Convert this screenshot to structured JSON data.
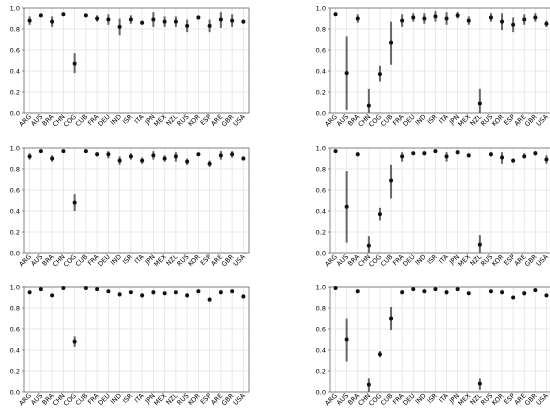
{
  "chart_data": [
    {
      "type": "scatter",
      "categories": [
        "ARG",
        "AUS",
        "BRA",
        "CHN",
        "COG",
        "CUB",
        "FRA",
        "DEU",
        "IND",
        "ISR",
        "ITA",
        "JPN",
        "MEX",
        "NZL",
        "RUS",
        "KOR",
        "ESP",
        "ARE",
        "GBR",
        "USA"
      ],
      "yticks": [
        "0.0",
        "0.2",
        "0.4",
        "0.6",
        "0.8",
        "1.0"
      ],
      "ylim": [
        0,
        1.0
      ],
      "grid": true,
      "values": [
        0.88,
        0.93,
        0.87,
        0.94,
        0.47,
        0.93,
        0.9,
        0.89,
        0.82,
        0.89,
        0.86,
        0.89,
        0.87,
        0.87,
        0.83,
        0.91,
        0.83,
        0.89,
        0.88,
        0.87
      ],
      "lower": [
        0.84,
        0.92,
        0.82,
        0.93,
        0.38,
        0.92,
        0.87,
        0.84,
        0.74,
        0.85,
        0.84,
        0.82,
        0.82,
        0.82,
        0.77,
        0.89,
        0.77,
        0.81,
        0.82,
        0.85
      ],
      "upper": [
        0.92,
        0.94,
        0.92,
        0.95,
        0.57,
        0.94,
        0.93,
        0.94,
        0.9,
        0.93,
        0.88,
        0.96,
        0.92,
        0.92,
        0.89,
        0.93,
        0.89,
        0.96,
        0.94,
        0.89
      ]
    },
    {
      "type": "scatter",
      "categories": [
        "ARG",
        "AUS",
        "BRA",
        "CHN",
        "COG",
        "CUB",
        "FRA",
        "DEU",
        "IND",
        "ISR",
        "ITA",
        "JPN",
        "MEX",
        "NZL",
        "RUS",
        "KOR",
        "ESP",
        "ARE",
        "GBR",
        "USA"
      ],
      "yticks": [
        "0.0",
        "0.2",
        "0.4",
        "0.6",
        "0.8",
        "1.0"
      ],
      "ylim": [
        0,
        1.0
      ],
      "grid": true,
      "values": [
        0.94,
        0.38,
        0.9,
        0.07,
        0.37,
        0.67,
        0.88,
        0.91,
        0.9,
        0.92,
        0.9,
        0.93,
        0.88,
        0.09,
        0.91,
        0.87,
        0.84,
        0.89,
        0.91,
        0.85
      ],
      "lower": [
        0.93,
        0.03,
        0.86,
        0.0,
        0.3,
        0.46,
        0.82,
        0.87,
        0.85,
        0.87,
        0.84,
        0.9,
        0.84,
        0.0,
        0.87,
        0.79,
        0.77,
        0.84,
        0.87,
        0.82
      ],
      "upper": [
        0.95,
        0.73,
        0.94,
        0.23,
        0.45,
        0.87,
        0.94,
        0.95,
        0.95,
        0.97,
        0.96,
        0.96,
        0.92,
        0.23,
        0.95,
        0.95,
        0.91,
        0.94,
        0.95,
        0.88
      ]
    },
    {
      "type": "scatter",
      "categories": [
        "ARG",
        "AUS",
        "BRA",
        "CHN",
        "COG",
        "CUB",
        "FRA",
        "DEU",
        "IND",
        "ISR",
        "ITA",
        "JPN",
        "MEX",
        "NZL",
        "RUS",
        "KOR",
        "ESP",
        "ARE",
        "GBR",
        "USA"
      ],
      "yticks": [
        "0.0",
        "0.2",
        "0.4",
        "0.6",
        "0.8",
        "1.0"
      ],
      "ylim": [
        0,
        1.0
      ],
      "grid": true,
      "values": [
        0.92,
        0.97,
        0.9,
        0.97,
        0.48,
        0.97,
        0.94,
        0.94,
        0.88,
        0.92,
        0.88,
        0.93,
        0.9,
        0.92,
        0.87,
        0.94,
        0.85,
        0.93,
        0.94,
        0.9
      ],
      "lower": [
        0.89,
        0.96,
        0.87,
        0.96,
        0.4,
        0.96,
        0.92,
        0.9,
        0.84,
        0.89,
        0.85,
        0.89,
        0.87,
        0.87,
        0.84,
        0.93,
        0.82,
        0.89,
        0.91,
        0.88
      ],
      "upper": [
        0.95,
        0.98,
        0.93,
        0.98,
        0.56,
        0.98,
        0.96,
        0.97,
        0.92,
        0.95,
        0.91,
        0.97,
        0.93,
        0.96,
        0.9,
        0.95,
        0.88,
        0.97,
        0.97,
        0.92
      ]
    },
    {
      "type": "scatter",
      "categories": [
        "ARG",
        "AUS",
        "BRA",
        "CHN",
        "COG",
        "CUB",
        "FRA",
        "DEU",
        "IND",
        "ISR",
        "ITA",
        "JPN",
        "MEX",
        "NZL",
        "RUS",
        "KOR",
        "ESP",
        "ARE",
        "GBR",
        "USA"
      ],
      "yticks": [
        "0.0",
        "0.2",
        "0.4",
        "0.6",
        "0.8",
        "1.0"
      ],
      "ylim": [
        0,
        1.0
      ],
      "grid": true,
      "values": [
        0.97,
        0.44,
        0.94,
        0.07,
        0.37,
        0.69,
        0.92,
        0.95,
        0.95,
        0.97,
        0.92,
        0.96,
        0.93,
        0.08,
        0.94,
        0.91,
        0.88,
        0.92,
        0.95,
        0.89
      ],
      "lower": [
        0.96,
        0.1,
        0.92,
        0.0,
        0.31,
        0.52,
        0.87,
        0.94,
        0.93,
        0.96,
        0.87,
        0.94,
        0.91,
        0.0,
        0.92,
        0.85,
        0.86,
        0.9,
        0.93,
        0.85
      ],
      "upper": [
        0.98,
        0.78,
        0.96,
        0.16,
        0.43,
        0.84,
        0.96,
        0.96,
        0.97,
        0.98,
        0.96,
        0.98,
        0.95,
        0.17,
        0.96,
        0.96,
        0.9,
        0.95,
        0.97,
        0.93
      ]
    },
    {
      "type": "scatter",
      "categories": [
        "ARG",
        "AUS",
        "BRA",
        "CHN",
        "COG",
        "CUB",
        "FRA",
        "DEU",
        "IND",
        "ISR",
        "ITA",
        "JPN",
        "MEX",
        "NZL",
        "RUS",
        "KOR",
        "ESP",
        "ARE",
        "GBR",
        "USA"
      ],
      "yticks": [
        "0.0",
        "0.2",
        "0.4",
        "0.6",
        "0.8",
        "1.0"
      ],
      "ylim": [
        0,
        1.0
      ],
      "grid": true,
      "values": [
        0.95,
        0.98,
        0.92,
        0.99,
        0.48,
        0.99,
        0.98,
        0.96,
        0.93,
        0.95,
        0.92,
        0.95,
        0.94,
        0.95,
        0.92,
        0.96,
        0.88,
        0.95,
        0.96,
        0.91
      ],
      "lower": [
        0.94,
        0.97,
        0.91,
        0.98,
        0.43,
        0.98,
        0.97,
        0.95,
        0.91,
        0.94,
        0.9,
        0.93,
        0.93,
        0.94,
        0.9,
        0.95,
        0.86,
        0.93,
        0.95,
        0.89
      ],
      "upper": [
        0.96,
        0.99,
        0.93,
        1.0,
        0.53,
        1.0,
        0.99,
        0.97,
        0.95,
        0.96,
        0.94,
        0.97,
        0.95,
        0.96,
        0.94,
        0.97,
        0.9,
        0.97,
        0.97,
        0.93
      ]
    },
    {
      "type": "scatter",
      "categories": [
        "ARG",
        "AUS",
        "BRA",
        "CHN",
        "COG",
        "CUB",
        "FRA",
        "DEU",
        "IND",
        "ISR",
        "ITA",
        "JPN",
        "MEX",
        "NZL",
        "RUS",
        "KOR",
        "ESP",
        "ARE",
        "GBR",
        "USA"
      ],
      "yticks": [
        "0.0",
        "0.2",
        "0.4",
        "0.6",
        "0.8",
        "1.0"
      ],
      "ylim": [
        0,
        1.0
      ],
      "grid": true,
      "values": [
        0.99,
        0.5,
        0.96,
        0.07,
        0.36,
        0.7,
        0.95,
        0.98,
        0.96,
        0.98,
        0.95,
        0.98,
        0.94,
        0.08,
        0.96,
        0.95,
        0.9,
        0.94,
        0.97,
        0.92
      ],
      "lower": [
        0.98,
        0.29,
        0.95,
        0.0,
        0.33,
        0.59,
        0.93,
        0.97,
        0.95,
        0.97,
        0.93,
        0.97,
        0.93,
        0.02,
        0.95,
        0.93,
        0.89,
        0.92,
        0.96,
        0.91
      ],
      "upper": [
        1.0,
        0.7,
        0.97,
        0.13,
        0.39,
        0.81,
        0.97,
        0.99,
        0.97,
        0.99,
        0.97,
        0.99,
        0.95,
        0.13,
        0.97,
        0.97,
        0.91,
        0.96,
        0.98,
        0.93
      ]
    }
  ]
}
